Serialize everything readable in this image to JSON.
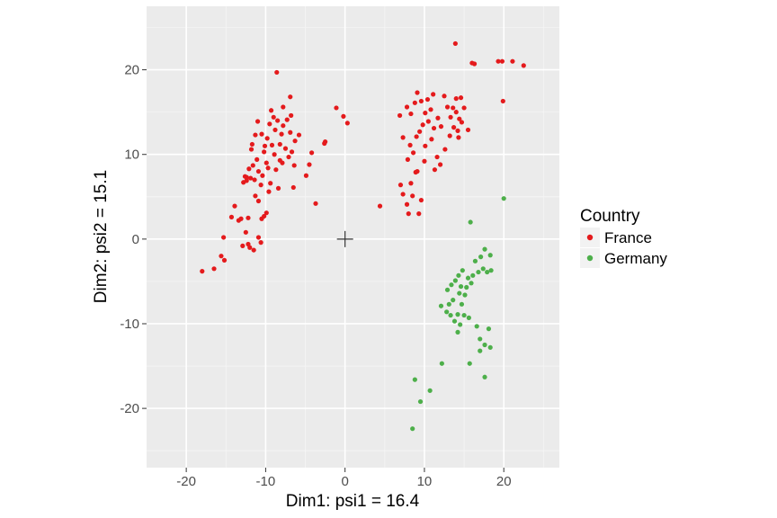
{
  "chart_data": {
    "type": "scatter",
    "xlabel": "Dim1: psi1 = 16.4",
    "ylabel": "Dim2: psi2 = 15.1",
    "xlim": [
      -25,
      27
    ],
    "ylim": [
      -27,
      27.5
    ],
    "x_ticks": [
      -20,
      -10,
      0,
      10,
      20
    ],
    "y_ticks": [
      -20,
      -10,
      0,
      10,
      20
    ],
    "x_tick_labels": [
      "-20",
      "-10",
      "0",
      "10",
      "20"
    ],
    "y_tick_labels": [
      "-20",
      "-10",
      "0",
      "10",
      "20"
    ],
    "grid": true,
    "background": "#ebebeb",
    "origin_marker": [
      0,
      0
    ],
    "legend": {
      "title": "Country",
      "placement": "right"
    },
    "series": [
      {
        "name": "France",
        "color": "#e41a1c",
        "points": [
          [
            -18.0,
            -3.8
          ],
          [
            -16.5,
            -3.5
          ],
          [
            -15.6,
            -2.0
          ],
          [
            -15.2,
            -2.5
          ],
          [
            -15.3,
            0.2
          ],
          [
            -14.3,
            2.6
          ],
          [
            -13.9,
            3.9
          ],
          [
            -13.4,
            2.2
          ],
          [
            -13.1,
            2.4
          ],
          [
            -12.9,
            -0.8
          ],
          [
            -12.5,
            0.8
          ],
          [
            -12.2,
            2.5
          ],
          [
            -12.0,
            -1.0
          ],
          [
            -11.5,
            -1.3
          ],
          [
            -10.9,
            0.2
          ],
          [
            -10.5,
            2.4
          ],
          [
            -10.2,
            2.7
          ],
          [
            -9.9,
            3.1
          ],
          [
            -10.6,
            -0.4
          ],
          [
            -12.2,
            -0.6
          ],
          [
            -12.8,
            6.7
          ],
          [
            -12.6,
            7.4
          ],
          [
            -12.4,
            6.9
          ],
          [
            -12.1,
            8.3
          ],
          [
            -11.9,
            7.2
          ],
          [
            -11.6,
            8.7
          ],
          [
            -11.4,
            7.0
          ],
          [
            -11.1,
            9.4
          ],
          [
            -10.9,
            8.0
          ],
          [
            -10.6,
            6.4
          ],
          [
            -10.4,
            7.5
          ],
          [
            -10.2,
            10.3
          ],
          [
            -9.9,
            9.0
          ],
          [
            -9.7,
            8.4
          ],
          [
            -9.4,
            6.6
          ],
          [
            -9.2,
            11.1
          ],
          [
            -8.9,
            10.0
          ],
          [
            -8.7,
            8.2
          ],
          [
            -8.4,
            6.0
          ],
          [
            -8.2,
            9.3
          ],
          [
            -11.8,
            10.6
          ],
          [
            -11.3,
            12.3
          ],
          [
            -11.0,
            13.9
          ],
          [
            -10.5,
            12.4
          ],
          [
            -10.1,
            11.0
          ],
          [
            -9.8,
            11.9
          ],
          [
            -9.5,
            13.6
          ],
          [
            -9.3,
            15.2
          ],
          [
            -9.0,
            14.4
          ],
          [
            -8.8,
            12.9
          ],
          [
            -8.5,
            14.0
          ],
          [
            -8.2,
            11.2
          ],
          [
            -8.0,
            12.4
          ],
          [
            -7.8,
            13.4
          ],
          [
            -7.5,
            10.7
          ],
          [
            -7.3,
            14.1
          ],
          [
            -7.1,
            9.7
          ],
          [
            -6.9,
            12.6
          ],
          [
            -6.7,
            10.3
          ],
          [
            -6.4,
            8.7
          ],
          [
            -8.6,
            19.7
          ],
          [
            -6.9,
            16.8
          ],
          [
            -6.8,
            14.6
          ],
          [
            -6.3,
            11.6
          ],
          [
            -5.8,
            12.3
          ],
          [
            -4.9,
            7.5
          ],
          [
            -4.5,
            8.8
          ],
          [
            -4.2,
            10.2
          ],
          [
            -3.7,
            4.2
          ],
          [
            -2.5,
            11.5
          ],
          [
            -2.6,
            11.3
          ],
          [
            -1.1,
            15.5
          ],
          [
            -7.8,
            15.6
          ],
          [
            -7.9,
            9.0
          ],
          [
            -6.5,
            6.1
          ],
          [
            -9.6,
            5.6
          ],
          [
            -10.9,
            4.5
          ],
          [
            -11.3,
            5.1
          ],
          [
            -12.4,
            7.3
          ],
          [
            -11.7,
            11.2
          ],
          [
            -0.2,
            14.5
          ],
          [
            0.3,
            13.7
          ],
          [
            4.4,
            3.9
          ],
          [
            7.0,
            6.4
          ],
          [
            7.3,
            5.3
          ],
          [
            7.8,
            4.1
          ],
          [
            8.0,
            3.0
          ],
          [
            8.3,
            6.6
          ],
          [
            8.5,
            5.1
          ],
          [
            8.9,
            7.9
          ],
          [
            9.3,
            3.0
          ],
          [
            9.6,
            4.6
          ],
          [
            7.9,
            9.4
          ],
          [
            8.2,
            11.1
          ],
          [
            8.6,
            10.2
          ],
          [
            9.0,
            12.1
          ],
          [
            9.4,
            12.7
          ],
          [
            9.8,
            13.5
          ],
          [
            10.1,
            11.0
          ],
          [
            10.5,
            13.9
          ],
          [
            10.9,
            11.8
          ],
          [
            11.2,
            13.1
          ],
          [
            11.6,
            9.7
          ],
          [
            6.9,
            14.6
          ],
          [
            7.3,
            12.0
          ],
          [
            7.8,
            15.6
          ],
          [
            8.3,
            14.8
          ],
          [
            8.8,
            16.1
          ],
          [
            9.1,
            17.3
          ],
          [
            9.6,
            16.3
          ],
          [
            10.1,
            14.9
          ],
          [
            10.4,
            16.5
          ],
          [
            10.8,
            15.3
          ],
          [
            11.1,
            17.1
          ],
          [
            11.7,
            14.3
          ],
          [
            12.1,
            13.3
          ],
          [
            12.5,
            16.9
          ],
          [
            12.9,
            15.6
          ],
          [
            13.3,
            14.4
          ],
          [
            13.7,
            13.2
          ],
          [
            14.0,
            15.0
          ],
          [
            14.4,
            14.2
          ],
          [
            14.7,
            13.8
          ],
          [
            14.2,
            12.8
          ],
          [
            9.1,
            8.0
          ],
          [
            10.0,
            9.2
          ],
          [
            11.3,
            8.2
          ],
          [
            12.0,
            8.8
          ],
          [
            12.6,
            10.6
          ],
          [
            13.2,
            12.2
          ],
          [
            13.6,
            15.5
          ],
          [
            14.0,
            16.6
          ],
          [
            14.3,
            12.0
          ],
          [
            14.6,
            16.7
          ],
          [
            15.5,
            12.9
          ],
          [
            15.0,
            15.5
          ],
          [
            13.9,
            23.1
          ],
          [
            16.0,
            20.8
          ],
          [
            16.3,
            20.7
          ],
          [
            19.3,
            21.0
          ],
          [
            19.8,
            21.0
          ],
          [
            21.1,
            21.0
          ],
          [
            22.5,
            20.5
          ],
          [
            19.9,
            16.3
          ]
        ]
      },
      {
        "name": "Germany",
        "color": "#4daf4a",
        "points": [
          [
            20.0,
            4.8
          ],
          [
            15.8,
            2.0
          ],
          [
            17.6,
            -1.2
          ],
          [
            18.3,
            -1.9
          ],
          [
            17.1,
            -2.1
          ],
          [
            16.4,
            -2.6
          ],
          [
            16.8,
            -3.9
          ],
          [
            17.4,
            -3.5
          ],
          [
            17.9,
            -3.9
          ],
          [
            18.4,
            -3.7
          ],
          [
            16.1,
            -4.3
          ],
          [
            15.5,
            -4.6
          ],
          [
            14.8,
            -3.7
          ],
          [
            14.3,
            -4.3
          ],
          [
            13.9,
            -4.9
          ],
          [
            14.6,
            -5.6
          ],
          [
            15.3,
            -5.7
          ],
          [
            15.9,
            -5.2
          ],
          [
            13.4,
            -5.4
          ],
          [
            12.9,
            -6.0
          ],
          [
            14.4,
            -6.4
          ],
          [
            15.1,
            -6.6
          ],
          [
            13.6,
            -7.2
          ],
          [
            13.1,
            -7.7
          ],
          [
            14.7,
            -7.7
          ],
          [
            12.1,
            -7.9
          ],
          [
            12.8,
            -8.6
          ],
          [
            13.3,
            -9.0
          ],
          [
            14.2,
            -8.9
          ],
          [
            15.0,
            -9.0
          ],
          [
            15.6,
            -9.3
          ],
          [
            13.8,
            -9.7
          ],
          [
            14.5,
            -10.1
          ],
          [
            16.6,
            -10.3
          ],
          [
            18.1,
            -10.6
          ],
          [
            14.2,
            -11.0
          ],
          [
            17.0,
            -11.8
          ],
          [
            17.6,
            -12.5
          ],
          [
            18.3,
            -12.8
          ],
          [
            17.0,
            -13.2
          ],
          [
            15.7,
            -14.7
          ],
          [
            12.2,
            -14.7
          ],
          [
            17.6,
            -16.3
          ],
          [
            8.8,
            -16.6
          ],
          [
            10.7,
            -17.9
          ],
          [
            9.5,
            -19.2
          ],
          [
            8.5,
            -22.4
          ]
        ]
      }
    ]
  }
}
